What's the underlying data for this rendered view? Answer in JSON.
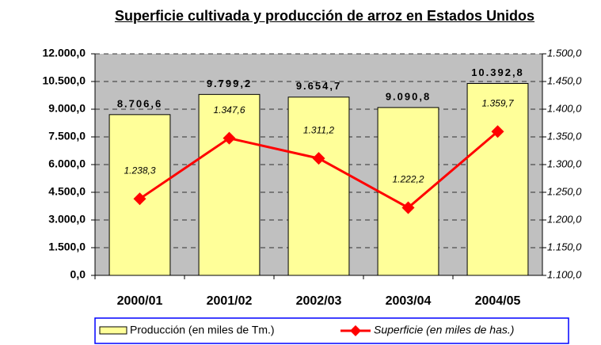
{
  "chart_data": {
    "type": "bar",
    "title": "Superficie cultivada y producción de arroz en Estados Unidos",
    "categories": [
      "2000/01",
      "2001/02",
      "2002/03",
      "2003/04",
      "2004/05"
    ],
    "series": [
      {
        "name": "Producción (en miles de Tm.)",
        "color": "#ffff99",
        "type": "bar",
        "values": [
          8706.6,
          9799.2,
          9654.7,
          9090.8,
          10392.8
        ],
        "value_labels": [
          "8.706,6",
          "9.799,2",
          "9.654,7",
          "9.090,8",
          "10.392,8"
        ]
      },
      {
        "name": "Superficie (en miles de has.)",
        "color": "#ff0000",
        "type": "line",
        "axis": "y2",
        "values": [
          1238.3,
          1347.6,
          1311.2,
          1222.2,
          1359.7
        ],
        "value_labels": [
          "1.238,3",
          "1.347,6",
          "1.311,2",
          "1.222,2",
          "1.359,7"
        ]
      }
    ],
    "ylim": [
      0,
      12000
    ],
    "yticks": [
      {
        "value": 0,
        "label": "0,0"
      },
      {
        "value": 1500,
        "label": "1.500,0"
      },
      {
        "value": 3000,
        "label": "3.000,0"
      },
      {
        "value": 4500,
        "label": "4.500,0"
      },
      {
        "value": 6000,
        "label": "6.000,0"
      },
      {
        "value": 7500,
        "label": "7.500,0"
      },
      {
        "value": 9000,
        "label": "9.000,0"
      },
      {
        "value": 10500,
        "label": "10.500,0"
      },
      {
        "value": 12000,
        "label": "12.000,0"
      }
    ],
    "y2lim": [
      1100,
      1500
    ],
    "y2ticks": [
      {
        "value": 1100,
        "label": "1.100,0"
      },
      {
        "value": 1150,
        "label": "1.150,0"
      },
      {
        "value": 1200,
        "label": "1.200,0"
      },
      {
        "value": 1250,
        "label": "1.250,0"
      },
      {
        "value": 1300,
        "label": "1.300,0"
      },
      {
        "value": 1350,
        "label": "1.350,0"
      },
      {
        "value": 1400,
        "label": "1.400,0"
      },
      {
        "value": 1450,
        "label": "1.450,0"
      },
      {
        "value": 1500,
        "label": "1.500,0"
      }
    ],
    "grid": true
  }
}
